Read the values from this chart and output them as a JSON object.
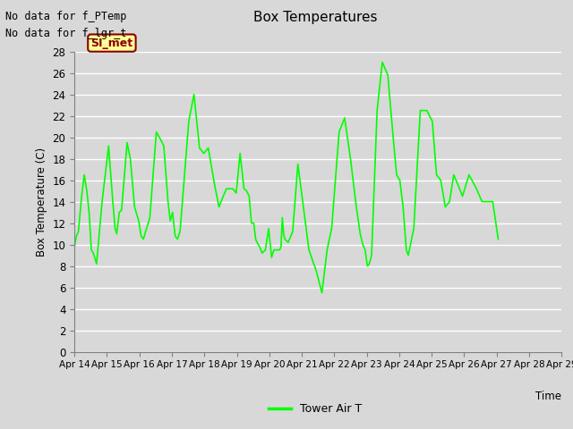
{
  "title": "Box Temperatures",
  "ylabel": "Box Temperature (C)",
  "xlabel": "Time",
  "no_data_text": [
    "No data for f_PTemp",
    "No data for f_lgr_t"
  ],
  "legend_label": "Tower Air T",
  "legend_line_color": "#00ff00",
  "si_met_label": "SI_met",
  "si_met_bg": "#ffff99",
  "si_met_border": "#8b0000",
  "si_met_text_color": "#8b0000",
  "line_color": "#00ff00",
  "plot_bg_color": "#d8d8d8",
  "ylim": [
    0,
    28
  ],
  "yticks": [
    0,
    2,
    4,
    6,
    8,
    10,
    12,
    14,
    16,
    18,
    20,
    22,
    24,
    26,
    28
  ],
  "x_labels": [
    "Apr 14",
    "Apr 15",
    "Apr 16",
    "Apr 17",
    "Apr 18",
    "Apr 19",
    "Apr 20",
    "Apr 21",
    "Apr 22",
    "Apr 23",
    "Apr 24",
    "Apr 25",
    "Apr 26",
    "Apr 27",
    "Apr 28",
    "Apr 29"
  ],
  "y_data": [
    9.8,
    10.8,
    11.2,
    14.5,
    16.5,
    15.0,
    13.0,
    9.5,
    9.2,
    8.2,
    14.0,
    19.2,
    14.0,
    11.5,
    11.0,
    13.0,
    13.2,
    19.5,
    18.0,
    13.5,
    12.8,
    12.2,
    10.8,
    10.5,
    11.5,
    12.5,
    20.5,
    19.8,
    19.2,
    14.0,
    12.2,
    13.0,
    10.8,
    10.5,
    11.2,
    21.5,
    24.0,
    19.0,
    18.5,
    19.0,
    15.5,
    13.5,
    14.5,
    15.2,
    15.2,
    15.2,
    14.8,
    18.5,
    15.2,
    15.0,
    14.5,
    12.0,
    12.0,
    10.5,
    10.2,
    10.0,
    9.8,
    9.5,
    9.2,
    9.5,
    11.5,
    8.8,
    9.5,
    9.5,
    9.5,
    9.5,
    9.8,
    12.5,
    11.0,
    10.5,
    10.2,
    11.2,
    17.5,
    13.5,
    9.5,
    7.5,
    5.5,
    9.5,
    11.5,
    20.5,
    21.8,
    18.0,
    13.5,
    11.0,
    10.0,
    9.5,
    8.0,
    8.2,
    9.0,
    22.5,
    27.0,
    25.8,
    20.5,
    16.5,
    16.0,
    13.5,
    9.5,
    9.0,
    11.5,
    22.5,
    22.5,
    21.5,
    16.5,
    16.0,
    13.5,
    14.0,
    16.5,
    15.5,
    14.5,
    16.5,
    15.2,
    14.0,
    14.0,
    14.0,
    10.5
  ],
  "x_data_normalized": [
    0.0,
    0.06,
    0.12,
    0.22,
    0.3,
    0.38,
    0.45,
    0.52,
    0.58,
    0.68,
    0.85,
    1.05,
    1.18,
    1.25,
    1.3,
    1.38,
    1.45,
    1.62,
    1.72,
    1.85,
    1.92,
    1.98,
    2.05,
    2.12,
    2.22,
    2.32,
    2.52,
    2.65,
    2.75,
    2.88,
    2.95,
    3.02,
    3.1,
    3.17,
    3.25,
    3.52,
    3.68,
    3.85,
    3.98,
    4.12,
    4.32,
    4.45,
    4.58,
    4.68,
    4.78,
    4.88,
    4.98,
    5.1,
    5.22,
    5.3,
    5.38,
    5.45,
    5.52,
    5.58,
    5.62,
    5.66,
    5.7,
    5.74,
    5.78,
    5.88,
    5.98,
    6.07,
    6.14,
    6.2,
    6.26,
    6.32,
    6.36,
    6.4,
    6.44,
    6.48,
    6.58,
    6.72,
    6.88,
    7.05,
    7.22,
    7.45,
    7.62,
    7.78,
    7.92,
    8.15,
    8.32,
    8.5,
    8.68,
    8.8,
    8.88,
    8.95,
    9.02,
    9.08,
    9.15,
    9.32,
    9.48,
    9.65,
    9.8,
    9.92,
    10.02,
    10.12,
    10.22,
    10.28,
    10.45,
    10.65,
    10.85,
    11.02,
    11.15,
    11.28,
    11.42,
    11.55,
    11.68,
    11.82,
    11.95,
    12.15,
    12.38,
    12.55,
    12.72,
    12.88,
    13.05
  ]
}
